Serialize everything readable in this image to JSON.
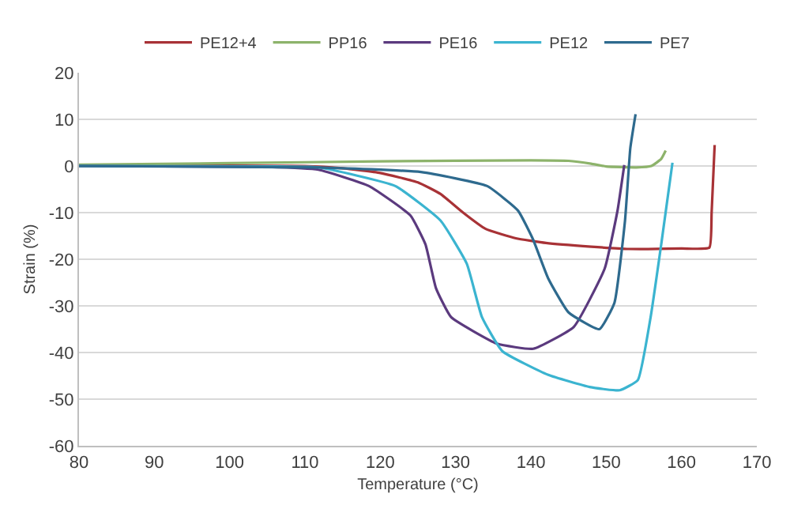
{
  "chart_data": {
    "type": "line",
    "xlabel": "Temperature (°C)",
    "ylabel": "Strain (%)",
    "xlim": [
      80,
      170
    ],
    "xticks": [
      80,
      90,
      100,
      110,
      120,
      130,
      140,
      150,
      160,
      170
    ],
    "ylim": [
      -60,
      20
    ],
    "yticks": [
      -60,
      -50,
      -40,
      -30,
      -20,
      -10,
      0,
      10,
      20
    ],
    "grid": "y",
    "legend": "top",
    "marker": "none",
    "line_style": "solid",
    "series": [
      {
        "name": "PE12+4",
        "color": "#a83236",
        "x": [
          80,
          110,
          115,
          120,
          125,
          128,
          131,
          134,
          138,
          142,
          148,
          153,
          160,
          163.7,
          164,
          164.4
        ],
        "values": [
          0,
          0,
          -0.5,
          -1.5,
          -3.5,
          -6,
          -10,
          -13.5,
          -15.5,
          -16.5,
          -17.3,
          -17.8,
          -17.7,
          -17.5,
          -10,
          4.5
        ]
      },
      {
        "name": "PP16",
        "color": "#8db36b",
        "x": [
          80,
          100,
          120,
          140,
          145,
          148,
          150,
          154,
          156,
          157.3,
          157.9
        ],
        "values": [
          0.3,
          0.6,
          1,
          1.2,
          1.1,
          0.5,
          -0.1,
          -0.3,
          0,
          1.5,
          3.3
        ]
      },
      {
        "name": "PE16",
        "color": "#5b3a7e",
        "x": [
          80,
          105,
          111.8,
          118.5,
          124,
          126,
          127.4,
          129.4,
          135.5,
          140.3,
          145.7,
          149.8,
          151.5,
          152.4
        ],
        "values": [
          0,
          -0.2,
          -0.8,
          -4.3,
          -10.6,
          -16.8,
          -26.2,
          -32.4,
          -38.1,
          -39.2,
          -34.5,
          -22,
          -9.6,
          0.2
        ]
      },
      {
        "name": "PE12",
        "color": "#3bb4d0",
        "x": [
          80,
          105,
          111.8,
          122,
          128,
          131.5,
          133.5,
          136.2,
          142.3,
          147.8,
          151.8,
          154.2,
          155.9,
          157.3,
          158.8
        ],
        "values": [
          0,
          -0.1,
          -0.3,
          -4.3,
          -11.7,
          -21,
          -32.4,
          -39.7,
          -44.8,
          -47.4,
          -48.1,
          -45.9,
          -32.4,
          -16.9,
          0.7
        ]
      },
      {
        "name": "PE7",
        "color": "#2e6a8e",
        "x": [
          80,
          111.8,
          125.4,
          134.2,
          138.3,
          140.3,
          142.3,
          145,
          149.1,
          151.1,
          152.5,
          153.2,
          153.9
        ],
        "values": [
          0,
          -0.3,
          -1.3,
          -4.3,
          -9.6,
          -15.8,
          -24.1,
          -31.4,
          -35,
          -29.3,
          -11.7,
          3.8,
          11.1
        ]
      }
    ]
  }
}
